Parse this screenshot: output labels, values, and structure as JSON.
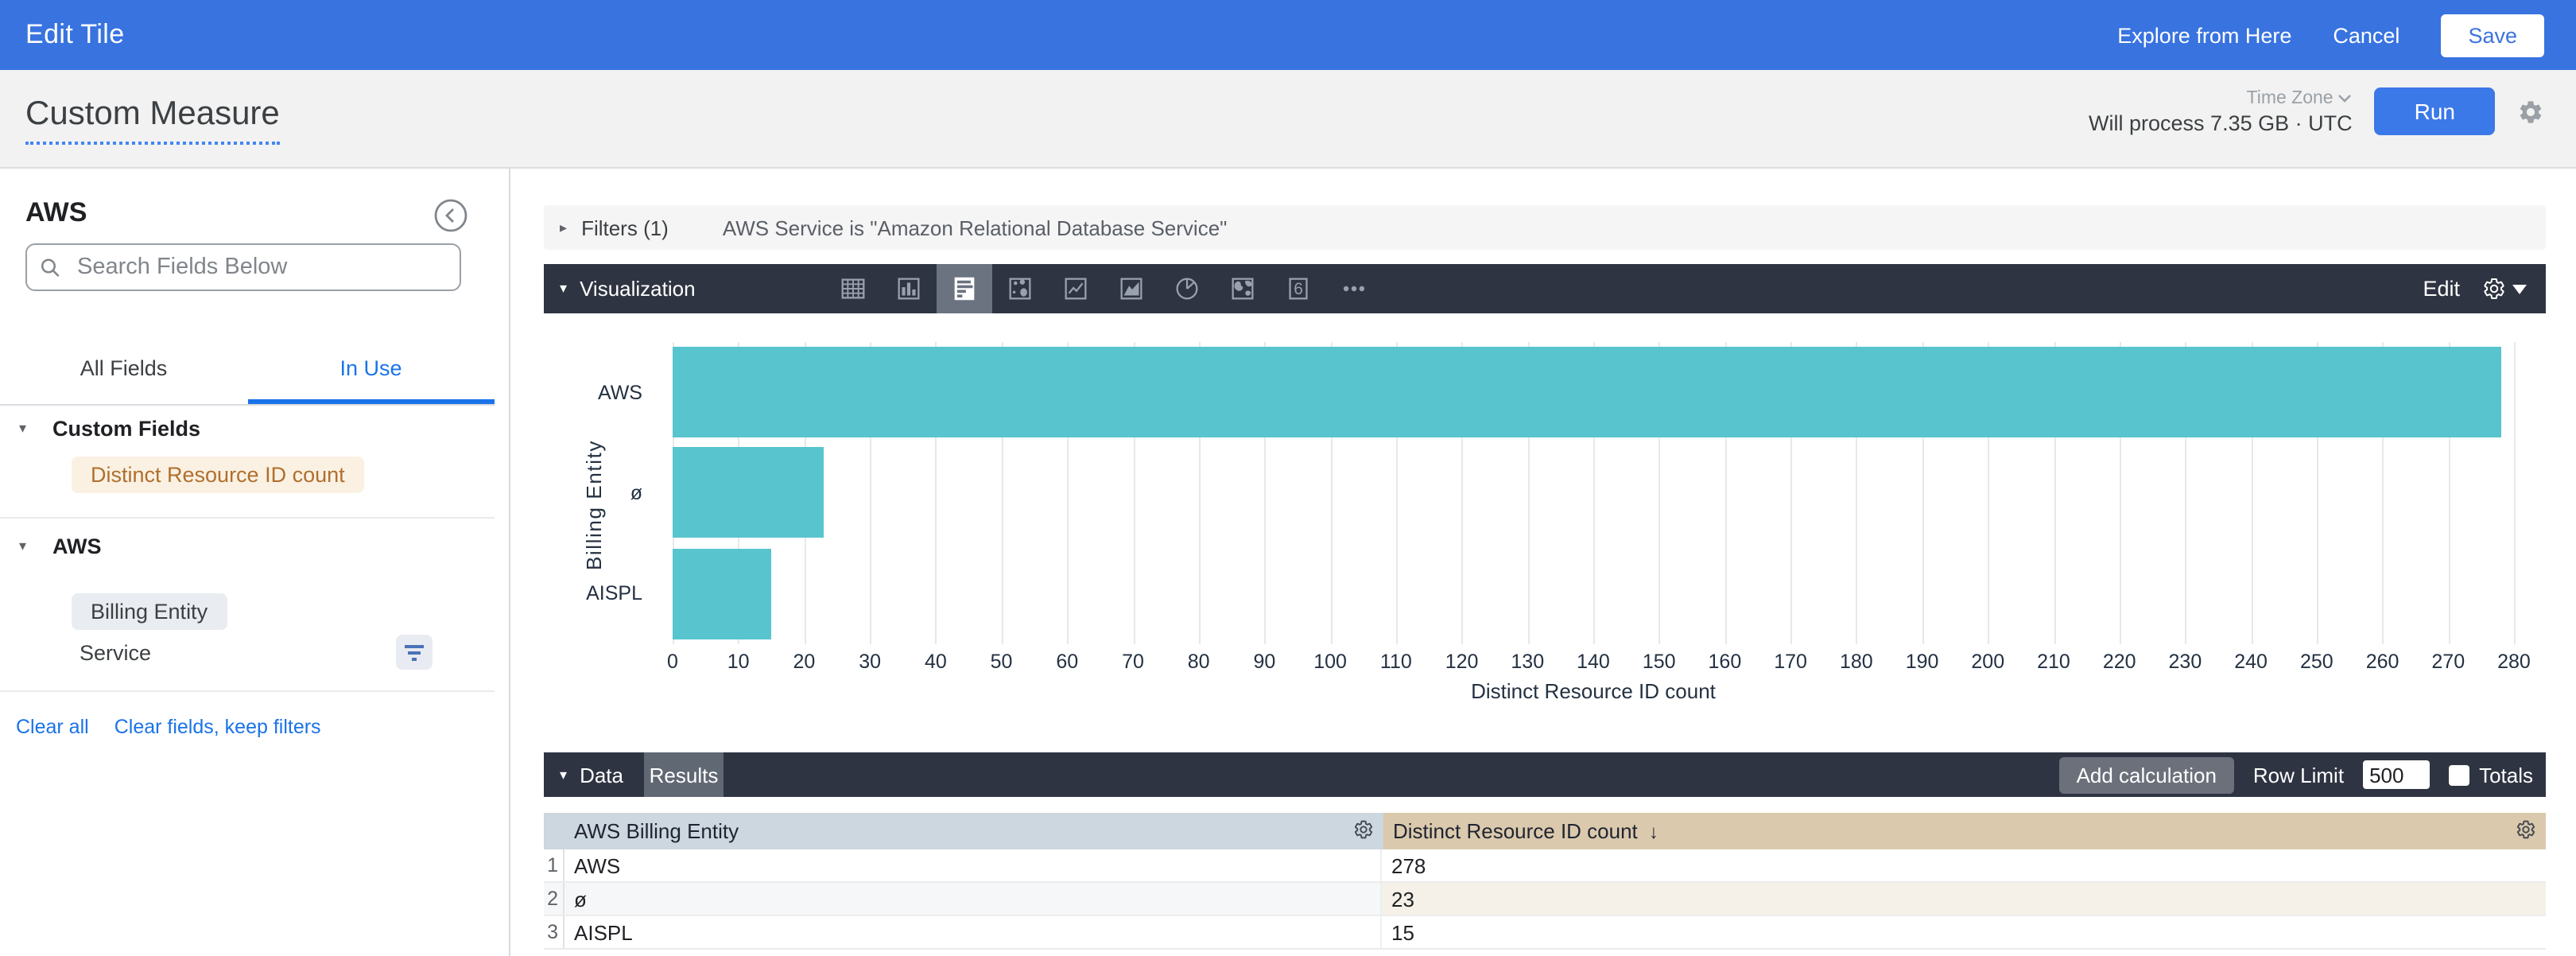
{
  "top_bar": {
    "title": "Edit Tile",
    "explore_from_here": "Explore from Here",
    "cancel": "Cancel",
    "save": "Save"
  },
  "query_header": {
    "title": "Custom Measure",
    "time_zone_label": "Time Zone",
    "process_info": "Will process 7.35 GB · UTC",
    "run": "Run"
  },
  "sidebar": {
    "explore_name": "AWS",
    "search_placeholder": "Search Fields Below",
    "tabs": {
      "all_fields": "All Fields",
      "in_use": "In Use",
      "active": "In Use"
    },
    "sections": [
      {
        "label": "Custom Fields",
        "items": [
          {
            "label": "Distinct Resource ID count",
            "type": "measure"
          }
        ]
      },
      {
        "label": "AWS",
        "items": [
          {
            "label": "Billing Entity",
            "type": "dimension-selected"
          },
          {
            "label": "Service",
            "type": "plain",
            "has_filter": true
          }
        ]
      }
    ],
    "footer_links": [
      "Clear all",
      "Clear fields, keep filters"
    ]
  },
  "filters_bar": {
    "label": "Filters (1)",
    "condition": "AWS Service is \"Amazon Relational Database Service\""
  },
  "viz_bar": {
    "label": "Visualization",
    "icons": [
      "table",
      "column-chart",
      "bar-chart",
      "scatter",
      "line-chart",
      "area-chart",
      "pie-chart",
      "map",
      "single-value",
      "more"
    ],
    "selected": "bar-chart",
    "edit": "Edit"
  },
  "chart_data": {
    "type": "bar",
    "orientation": "horizontal",
    "categories": [
      "AWS",
      "ø",
      "AISPL"
    ],
    "values": [
      278,
      23,
      15
    ],
    "xlabel": "Distinct Resource ID count",
    "ylabel": "Billing Entity",
    "xlim": [
      0,
      280
    ],
    "x_tick_step": 10,
    "grid": true,
    "legend": "none",
    "bar_color": "#58c4ce"
  },
  "data_bar": {
    "label": "Data",
    "results_tab": "Results",
    "add_calculation": "Add calculation",
    "row_limit_label": "Row Limit",
    "row_limit_value": "500",
    "totals_label": "Totals",
    "totals_checked": false
  },
  "table": {
    "columns": [
      {
        "label": "AWS Billing Entity",
        "sorted": null
      },
      {
        "label": "Distinct Resource ID count",
        "sorted": "desc"
      }
    ],
    "rows": [
      {
        "n": "1",
        "cells": [
          "AWS",
          "278"
        ]
      },
      {
        "n": "2",
        "cells": [
          "ø",
          "23"
        ]
      },
      {
        "n": "3",
        "cells": [
          "AISPL",
          "15"
        ]
      }
    ]
  },
  "colors": {
    "top_bar_blue": "#3873e0",
    "accent_blue": "#1a73e8",
    "run_blue": "#3b78e8",
    "dark_bar": "#2f3442",
    "bar_teal": "#58c4ce",
    "measure_tan_bg": "#faf1e3",
    "measure_text": "#b06f2d",
    "dimension_header_bg": "#ccd7e0",
    "measure_header_bg": "#dbc9ad",
    "stripe_cream": "#f5f1e8"
  }
}
